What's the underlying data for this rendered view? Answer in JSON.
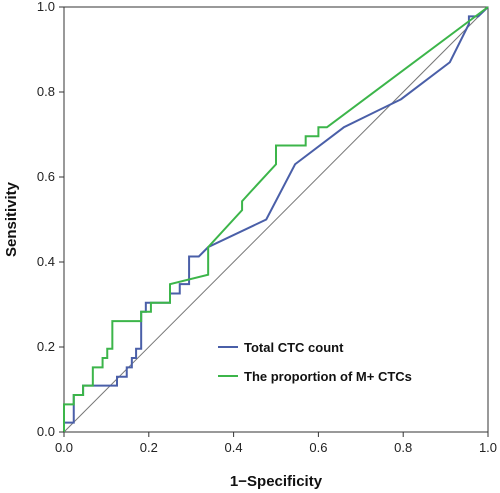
{
  "chart_data": {
    "type": "line",
    "title": "",
    "xlabel": "1−Specificity",
    "ylabel": "Sensitivity",
    "xlim": [
      0,
      1
    ],
    "ylim": [
      0,
      1
    ],
    "x_ticks": [
      "0.0",
      "0.2",
      "0.4",
      "0.6",
      "0.8",
      "1.0"
    ],
    "y_ticks": [
      "0.0",
      "0.2",
      "0.4",
      "0.6",
      "0.8",
      "1.0"
    ],
    "grid": false,
    "legend_position": "bottom-right",
    "series": [
      {
        "name": "Total CTC count",
        "color": "#4a5fa8",
        "x": [
          0,
          0,
          0.023,
          0.023,
          0.045,
          0.045,
          0.068,
          0.068,
          0.125,
          0.125,
          0.148,
          0.148,
          0.16,
          0.16,
          0.17,
          0.17,
          0.182,
          0.182,
          0.193,
          0.193,
          0.205,
          0.25,
          0.25,
          0.273,
          0.273,
          0.295,
          0.295,
          0.318,
          0.34,
          0.34,
          0.477,
          0.545,
          0.66,
          0.795,
          0.91,
          0.955,
          0.955,
          0.977,
          1.0
        ],
        "y": [
          0,
          0.022,
          0.022,
          0.087,
          0.087,
          0.109,
          0.109,
          0.109,
          0.109,
          0.13,
          0.13,
          0.152,
          0.152,
          0.174,
          0.174,
          0.196,
          0.196,
          0.283,
          0.283,
          0.304,
          0.304,
          0.304,
          0.326,
          0.326,
          0.348,
          0.348,
          0.413,
          0.413,
          0.435,
          0.435,
          0.5,
          0.63,
          0.717,
          0.783,
          0.87,
          0.96,
          0.978,
          0.978,
          1.0
        ]
      },
      {
        "name": "The proportion of M+ CTCs",
        "color": "#3cb54a",
        "x": [
          0,
          0,
          0.023,
          0.023,
          0.045,
          0.045,
          0.068,
          0.068,
          0.091,
          0.091,
          0.102,
          0.102,
          0.114,
          0.114,
          0.182,
          0.182,
          0.205,
          0.205,
          0.25,
          0.25,
          0.34,
          0.34,
          0.42,
          0.42,
          0.44,
          0.44,
          0.5,
          0.5,
          0.57,
          0.57,
          0.59,
          0.59,
          0.6,
          0.6,
          0.62,
          0.62,
          1.0
        ],
        "y": [
          0,
          0.065,
          0.065,
          0.087,
          0.087,
          0.109,
          0.109,
          0.152,
          0.152,
          0.174,
          0.174,
          0.196,
          0.196,
          0.261,
          0.261,
          0.283,
          0.283,
          0.304,
          0.304,
          0.348,
          0.37,
          0.435,
          0.522,
          0.543,
          0.565,
          0.565,
          0.63,
          0.674,
          0.674,
          0.696,
          0.696,
          0.696,
          0.696,
          0.717,
          0.717,
          0.717,
          1.0
        ]
      }
    ]
  }
}
